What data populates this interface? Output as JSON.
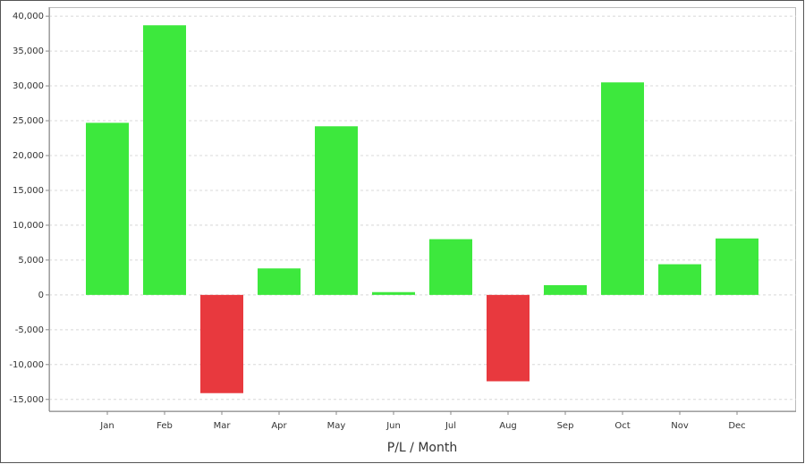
{
  "chart_data": {
    "type": "bar",
    "x_label": "P/L / Month",
    "categories": [
      "Jan",
      "Feb",
      "Mar",
      "Apr",
      "May",
      "Jun",
      "Jul",
      "Aug",
      "Sep",
      "Oct",
      "Nov",
      "Dec"
    ],
    "values": [
      24700,
      38700,
      -14100,
      3800,
      24200,
      400,
      8000,
      -12400,
      1400,
      30500,
      4400,
      8100
    ],
    "positive_color": "#3de83d",
    "negative_color": "#e8393e",
    "ylim": [
      -16700,
      41300
    ],
    "yticks": [
      {
        "value": -15000,
        "label": "-15,000"
      },
      {
        "value": -10000,
        "label": "-10,000"
      },
      {
        "value": -5000,
        "label": "-5,000"
      },
      0,
      {
        "value": 5000,
        "label": "5,000"
      },
      {
        "value": 10000,
        "label": "10,000"
      },
      {
        "value": 15000,
        "label": "15,000"
      },
      {
        "value": 20000,
        "label": "20,000"
      },
      {
        "value": 25000,
        "label": "25,000"
      },
      {
        "value": 30000,
        "label": "30,000"
      },
      {
        "value": 35000,
        "label": "35,000"
      },
      {
        "value": 40000,
        "label": "40,000"
      }
    ],
    "grid": true
  }
}
